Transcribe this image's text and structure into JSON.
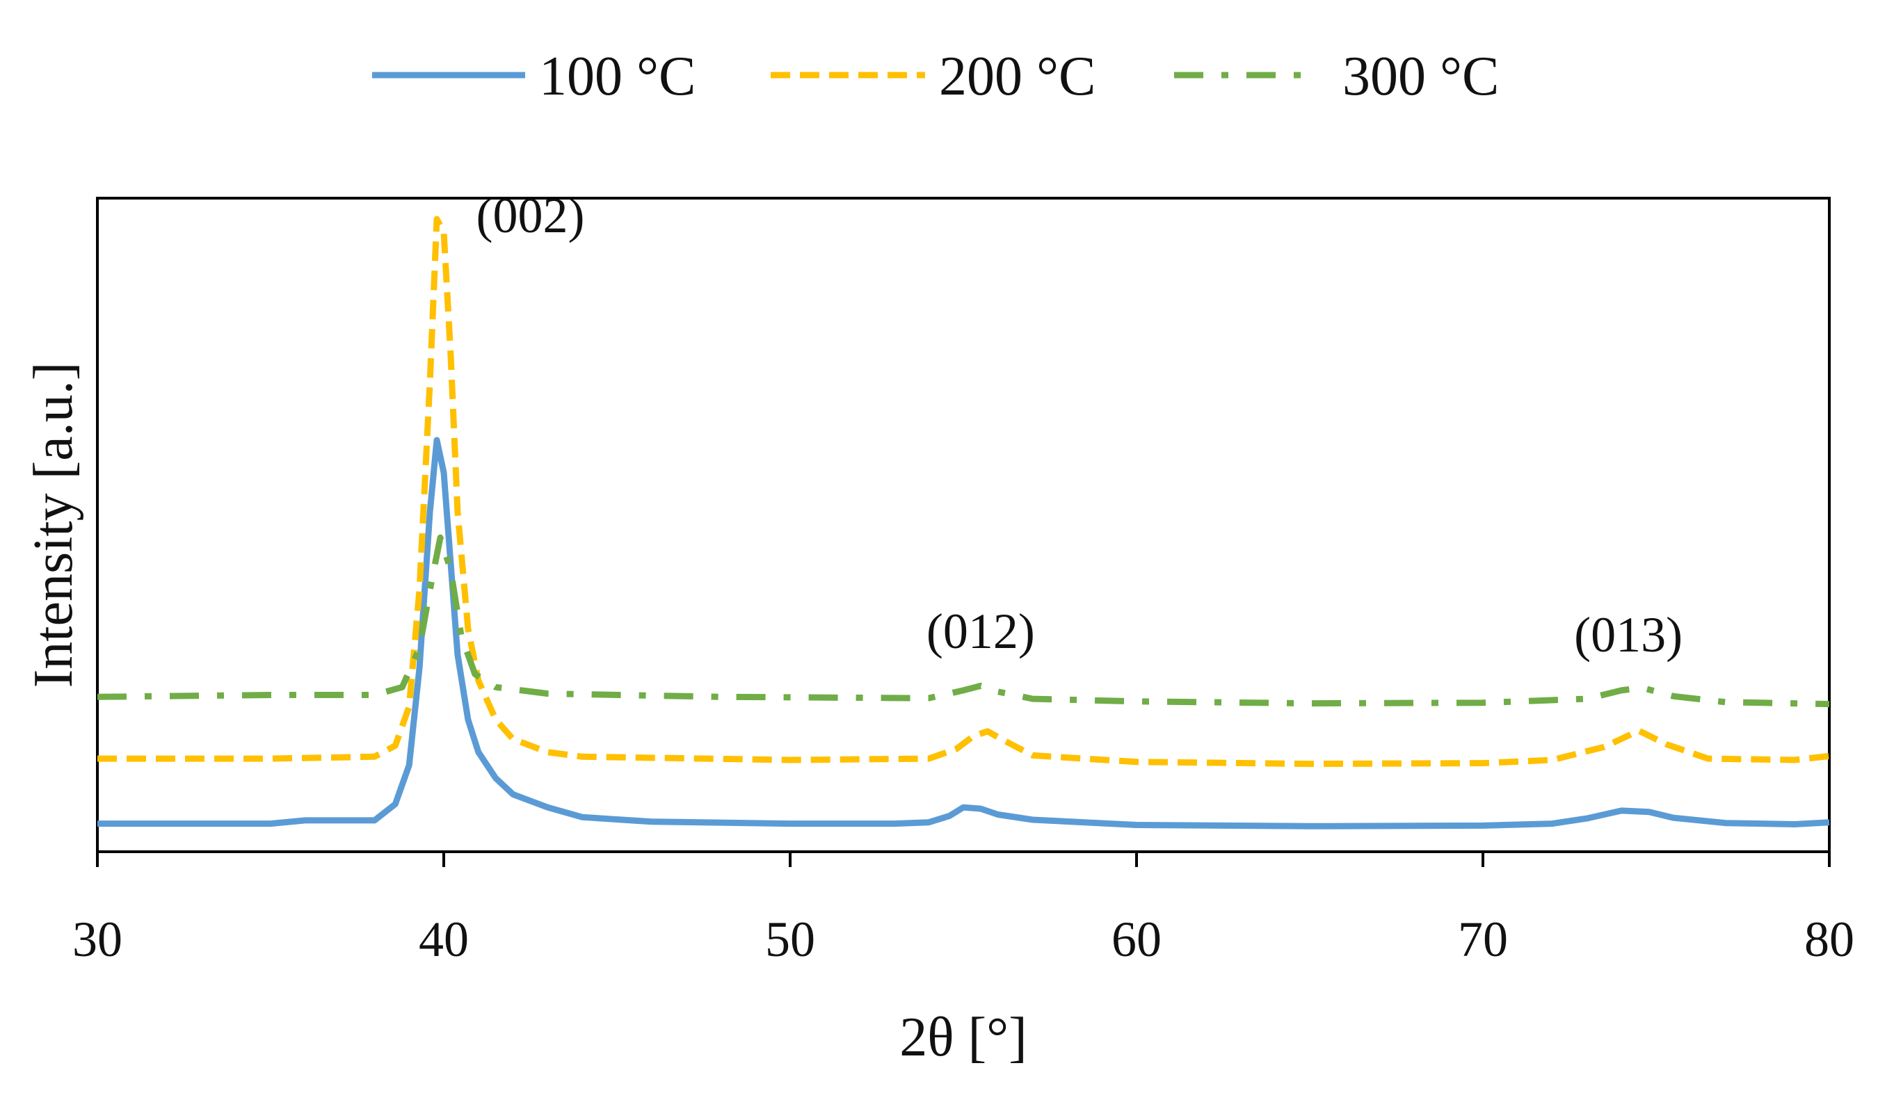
{
  "chart_data": {
    "type": "line",
    "title": "",
    "xlabel": "2θ [°]",
    "ylabel": "Intensity [a.u.]",
    "xlim": [
      30,
      80
    ],
    "ylim": [
      0,
      100
    ],
    "xticks": [
      30,
      40,
      50,
      60,
      70,
      80
    ],
    "xtick_labels": [
      "30",
      "40",
      "50",
      "60",
      "70",
      "80"
    ],
    "y_tick_labels_shown": false,
    "grid": false,
    "legend_position": "top-center",
    "series": [
      {
        "name": "100 °C",
        "color": "#5b9bd5",
        "style": "solid",
        "points": [
          [
            30,
            4
          ],
          [
            35,
            4
          ],
          [
            36,
            4.5
          ],
          [
            38,
            4.5
          ],
          [
            38.6,
            7
          ],
          [
            39,
            13
          ],
          [
            39.3,
            28
          ],
          [
            39.6,
            52
          ],
          [
            39.8,
            63
          ],
          [
            40,
            58
          ],
          [
            40.2,
            44
          ],
          [
            40.4,
            30
          ],
          [
            40.7,
            20
          ],
          [
            41,
            15
          ],
          [
            41.5,
            11
          ],
          [
            42,
            8.5
          ],
          [
            43,
            6.5
          ],
          [
            44,
            5
          ],
          [
            46,
            4.3
          ],
          [
            50,
            4
          ],
          [
            53,
            4
          ],
          [
            54,
            4.2
          ],
          [
            54.6,
            5.2
          ],
          [
            55,
            6.5
          ],
          [
            55.5,
            6.3
          ],
          [
            56,
            5.4
          ],
          [
            57,
            4.6
          ],
          [
            60,
            3.8
          ],
          [
            65,
            3.6
          ],
          [
            70,
            3.7
          ],
          [
            72,
            4
          ],
          [
            73,
            4.8
          ],
          [
            74,
            6
          ],
          [
            74.8,
            5.8
          ],
          [
            75.5,
            4.9
          ],
          [
            77,
            4.1
          ],
          [
            79,
            3.9
          ],
          [
            80,
            4.2
          ]
        ]
      },
      {
        "name": "200 °C",
        "color": "#ffc000",
        "style": "dashed",
        "points": [
          [
            30,
            14
          ],
          [
            35,
            14
          ],
          [
            38,
            14.3
          ],
          [
            38.6,
            16
          ],
          [
            39,
            22
          ],
          [
            39.3,
            40
          ],
          [
            39.6,
            72
          ],
          [
            39.8,
            97
          ],
          [
            40,
            95
          ],
          [
            40.2,
            76
          ],
          [
            40.4,
            52
          ],
          [
            40.7,
            34
          ],
          [
            41,
            26
          ],
          [
            41.5,
            20
          ],
          [
            42,
            17
          ],
          [
            43,
            15
          ],
          [
            44,
            14.3
          ],
          [
            50,
            13.8
          ],
          [
            54,
            14
          ],
          [
            54.8,
            15.5
          ],
          [
            55.3,
            17.5
          ],
          [
            55.7,
            18.2
          ],
          [
            56.1,
            17
          ],
          [
            57,
            14.5
          ],
          [
            60,
            13.5
          ],
          [
            65,
            13.2
          ],
          [
            70,
            13.3
          ],
          [
            72,
            13.8
          ],
          [
            73.5,
            15.8
          ],
          [
            74.5,
            18.3
          ],
          [
            75.3,
            16.2
          ],
          [
            76.5,
            14
          ],
          [
            79,
            13.8
          ],
          [
            80,
            14.4
          ]
        ]
      },
      {
        "name": "300 °C",
        "color": "#70ad47",
        "style": "dash-dot",
        "points": [
          [
            30,
            23.5
          ],
          [
            35,
            23.8
          ],
          [
            38,
            23.8
          ],
          [
            38.8,
            25
          ],
          [
            39.3,
            31
          ],
          [
            39.6,
            40
          ],
          [
            39.9,
            48
          ],
          [
            40.2,
            43
          ],
          [
            40.5,
            33
          ],
          [
            40.9,
            27
          ],
          [
            41.5,
            25
          ],
          [
            43,
            24
          ],
          [
            48,
            23.5
          ],
          [
            54,
            23.3
          ],
          [
            55,
            24.5
          ],
          [
            55.5,
            25.2
          ],
          [
            56,
            24.3
          ],
          [
            57,
            23.2
          ],
          [
            60,
            22.8
          ],
          [
            65,
            22.5
          ],
          [
            70,
            22.6
          ],
          [
            73,
            23.2
          ],
          [
            74,
            24.5
          ],
          [
            74.6,
            24.9
          ],
          [
            75.5,
            23.6
          ],
          [
            77,
            22.7
          ],
          [
            80,
            22.4
          ]
        ]
      }
    ],
    "annotations": [
      {
        "text": "(002)",
        "x": 42.5,
        "y": 95
      },
      {
        "text": "(012)",
        "x": 55.5,
        "y": 31
      },
      {
        "text": "(013)",
        "x": 74.2,
        "y": 30.5
      }
    ]
  }
}
